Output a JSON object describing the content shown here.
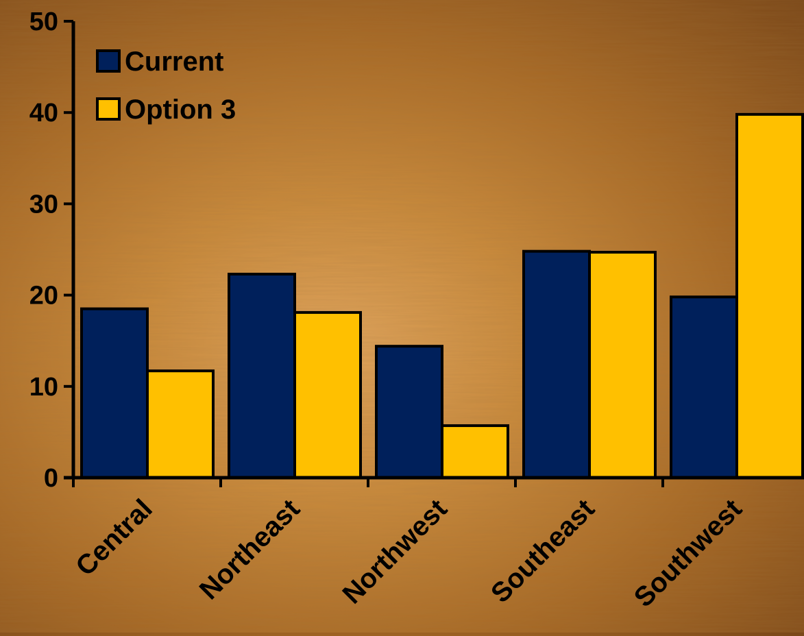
{
  "chart_data": {
    "type": "bar",
    "categories": [
      "Central",
      "Northeast",
      "Northwest",
      "Southeast",
      "Southwest"
    ],
    "series": [
      {
        "name": "Current",
        "values": [
          18.5,
          22.3,
          14.4,
          24.8,
          19.8
        ],
        "color": "#00205b"
      },
      {
        "name": "Option 3",
        "values": [
          11.7,
          18.1,
          5.7,
          24.7,
          39.8
        ],
        "color": "#ffc000"
      }
    ],
    "ylim": [
      0,
      50
    ],
    "yticks": [
      "0",
      "10",
      "20",
      "30",
      "40",
      "50"
    ],
    "grid": false,
    "legend_position": "top-left"
  }
}
